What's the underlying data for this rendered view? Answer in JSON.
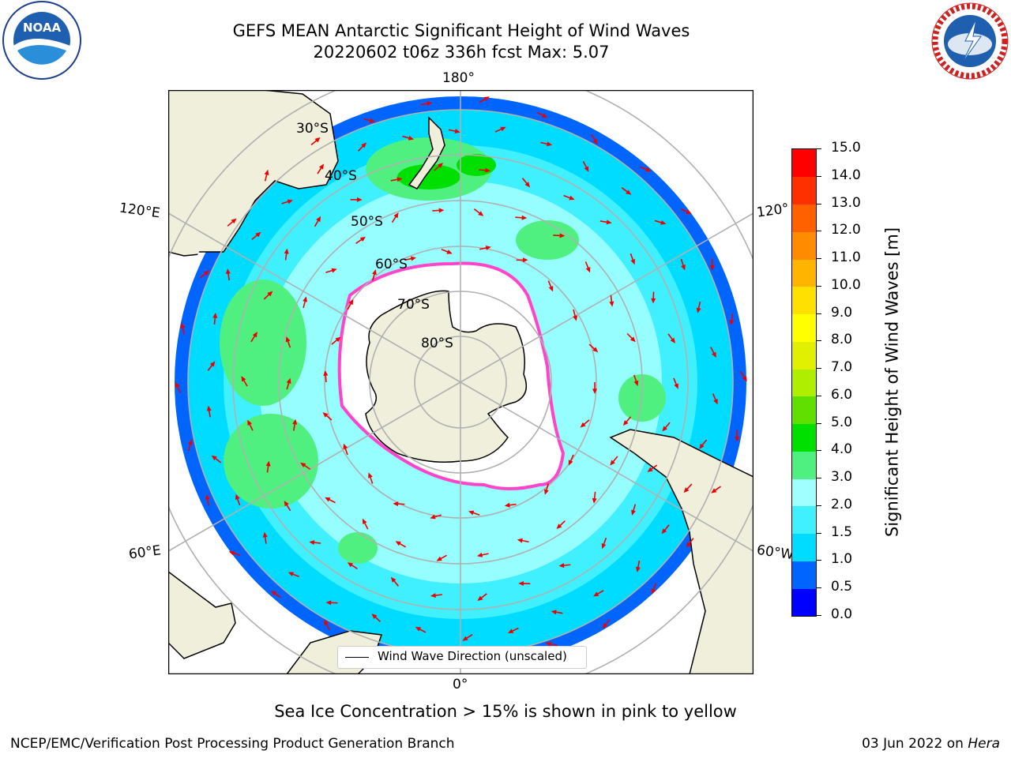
{
  "header": {
    "title_line1": "GEFS MEAN Antarctic Significant Height of Wind Waves",
    "title_line2": "20220602 t06z 336h fcst   Max: 5.07"
  },
  "logos": {
    "noaa_text": "NOAA",
    "noaa_ring_text": "NATIONAL OCEANIC AND ATMOSPHERIC ADMINISTRATION • U.S. DEPARTMENT OF COMMERCE",
    "nws_ring_text": "NATIONAL WEATHER SERVICE"
  },
  "map": {
    "longitude_labels": {
      "top": "180°",
      "bottom": "0°",
      "upper_left": "120°E",
      "upper_right": "120°",
      "lower_left": "60°E",
      "lower_right": "60°W"
    },
    "latitude_labels": [
      "30°S",
      "40°S",
      "50°S",
      "60°S",
      "70°S",
      "80°S"
    ],
    "legend_label": "Wind Wave Direction (unscaled)"
  },
  "colorbar": {
    "label": "Significant Height of Wind Waves [m]",
    "ticks": [
      "0.0",
      "0.5",
      "1.0",
      "1.5",
      "2.0",
      "3.0",
      "4.0",
      "5.0",
      "6.0",
      "7.0",
      "8.0",
      "9.0",
      "10.0",
      "11.0",
      "12.0",
      "13.0",
      "14.0",
      "15.0"
    ],
    "colors": [
      "#0000ff",
      "#0064ff",
      "#00dcff",
      "#40f0ff",
      "#a0ffff",
      "#50f080",
      "#00e000",
      "#60e000",
      "#b0ee00",
      "#e0f000",
      "#ffff00",
      "#ffe000",
      "#ffb400",
      "#ff8c00",
      "#ff6000",
      "#ff3000",
      "#ff0000"
    ],
    "range": [
      0,
      15
    ]
  },
  "caption": "Sea Ice Concentration > 15% is shown in pink to yellow",
  "footer": {
    "left": "NCEP/EMC/Verification Post Processing Product Generation Branch",
    "right_prefix": "03 Jun 2022 on ",
    "right_host": "Hera"
  }
}
